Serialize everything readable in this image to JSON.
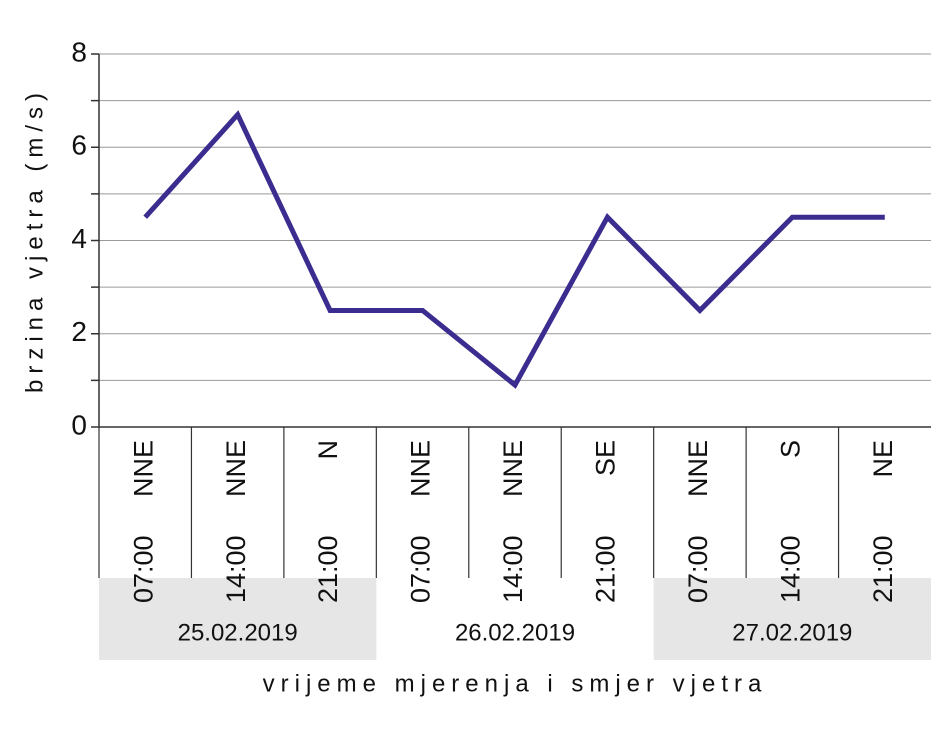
{
  "chart_data": {
    "type": "line",
    "categories": [
      "07:00",
      "14:00",
      "21:00",
      "07:00",
      "14:00",
      "21:00",
      "07:00",
      "14:00",
      "21:00"
    ],
    "directions": [
      "NNE",
      "NNE",
      "N",
      "NNE",
      "NNE",
      "SE",
      "NNE",
      "S",
      "NE"
    ],
    "dates": [
      "25.02.2019",
      "26.02.2019",
      "27.02.2019"
    ],
    "values": [
      4.5,
      6.7,
      2.5,
      2.5,
      0.9,
      4.5,
      2.5,
      4.5,
      4.5
    ],
    "color": "#3a2d8f",
    "ylim": [
      0,
      8
    ],
    "yticks": [
      0,
      2,
      4,
      6,
      8
    ],
    "minor_yticks": [
      1,
      3,
      5,
      7
    ],
    "grid": true,
    "xlabel": "vrijeme mjerenja i smjer vjetra",
    "ylabel": "brzina vjetra (m/s)"
  }
}
